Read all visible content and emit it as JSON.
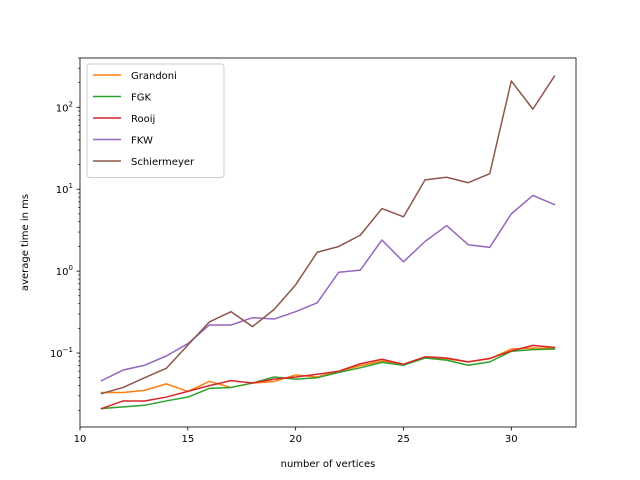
{
  "chart_data": {
    "type": "line",
    "xlabel": "number of vertices",
    "ylabel": "average time in ms",
    "y_scale": "log",
    "xlim": [
      10.0,
      33.0
    ],
    "ylim": [
      0.0125,
      400
    ],
    "x_ticks": [
      10,
      15,
      20,
      25,
      30
    ],
    "y_ticks": [
      {
        "value": 0.1,
        "base": "10",
        "exp": "−1"
      },
      {
        "value": 1,
        "base": "10",
        "exp": "0"
      },
      {
        "value": 10,
        "base": "10",
        "exp": "1"
      },
      {
        "value": 100,
        "base": "10",
        "exp": "2"
      }
    ],
    "grid": false,
    "legend_position": "upper-left",
    "x": [
      11,
      12,
      13,
      14,
      15,
      16,
      17,
      18,
      19,
      20,
      21,
      22,
      23,
      24,
      25,
      26,
      27,
      28,
      29,
      30,
      31,
      32
    ],
    "series": [
      {
        "name": "Grandoni",
        "color": "#ff7f0e",
        "values": [
          0.033,
          0.033,
          0.035,
          0.042,
          0.034,
          0.045,
          0.038,
          0.043,
          0.045,
          0.054,
          0.051,
          0.06,
          0.07,
          0.08,
          0.072,
          0.088,
          0.085,
          0.078,
          0.085,
          0.112,
          0.115,
          0.114
        ]
      },
      {
        "name": "FGK",
        "color": "#2ca02c",
        "values": [
          0.021,
          0.022,
          0.023,
          0.026,
          0.029,
          0.037,
          0.038,
          0.043,
          0.051,
          0.048,
          0.05,
          0.058,
          0.066,
          0.077,
          0.071,
          0.087,
          0.082,
          0.071,
          0.078,
          0.105,
          0.11,
          0.112
        ]
      },
      {
        "name": "Rooij",
        "color": "#d62728",
        "values": [
          0.021,
          0.026,
          0.026,
          0.029,
          0.034,
          0.04,
          0.046,
          0.043,
          0.048,
          0.051,
          0.055,
          0.06,
          0.074,
          0.084,
          0.073,
          0.09,
          0.087,
          0.078,
          0.086,
          0.106,
          0.124,
          0.117
        ]
      },
      {
        "name": "FKW",
        "color": "#9467bd",
        "values": [
          0.046,
          0.062,
          0.071,
          0.092,
          0.13,
          0.22,
          0.22,
          0.27,
          0.26,
          0.32,
          0.41,
          0.97,
          1.03,
          2.4,
          1.3,
          2.3,
          3.6,
          2.1,
          1.95,
          5.0,
          8.4,
          6.5
        ]
      },
      {
        "name": "Schiermeyer",
        "color": "#8c564b",
        "values": [
          0.032,
          0.038,
          0.05,
          0.065,
          0.125,
          0.24,
          0.32,
          0.21,
          0.34,
          0.68,
          1.7,
          2.0,
          2.75,
          5.8,
          4.6,
          13,
          14,
          12,
          15.5,
          210,
          95,
          240
        ]
      }
    ]
  }
}
